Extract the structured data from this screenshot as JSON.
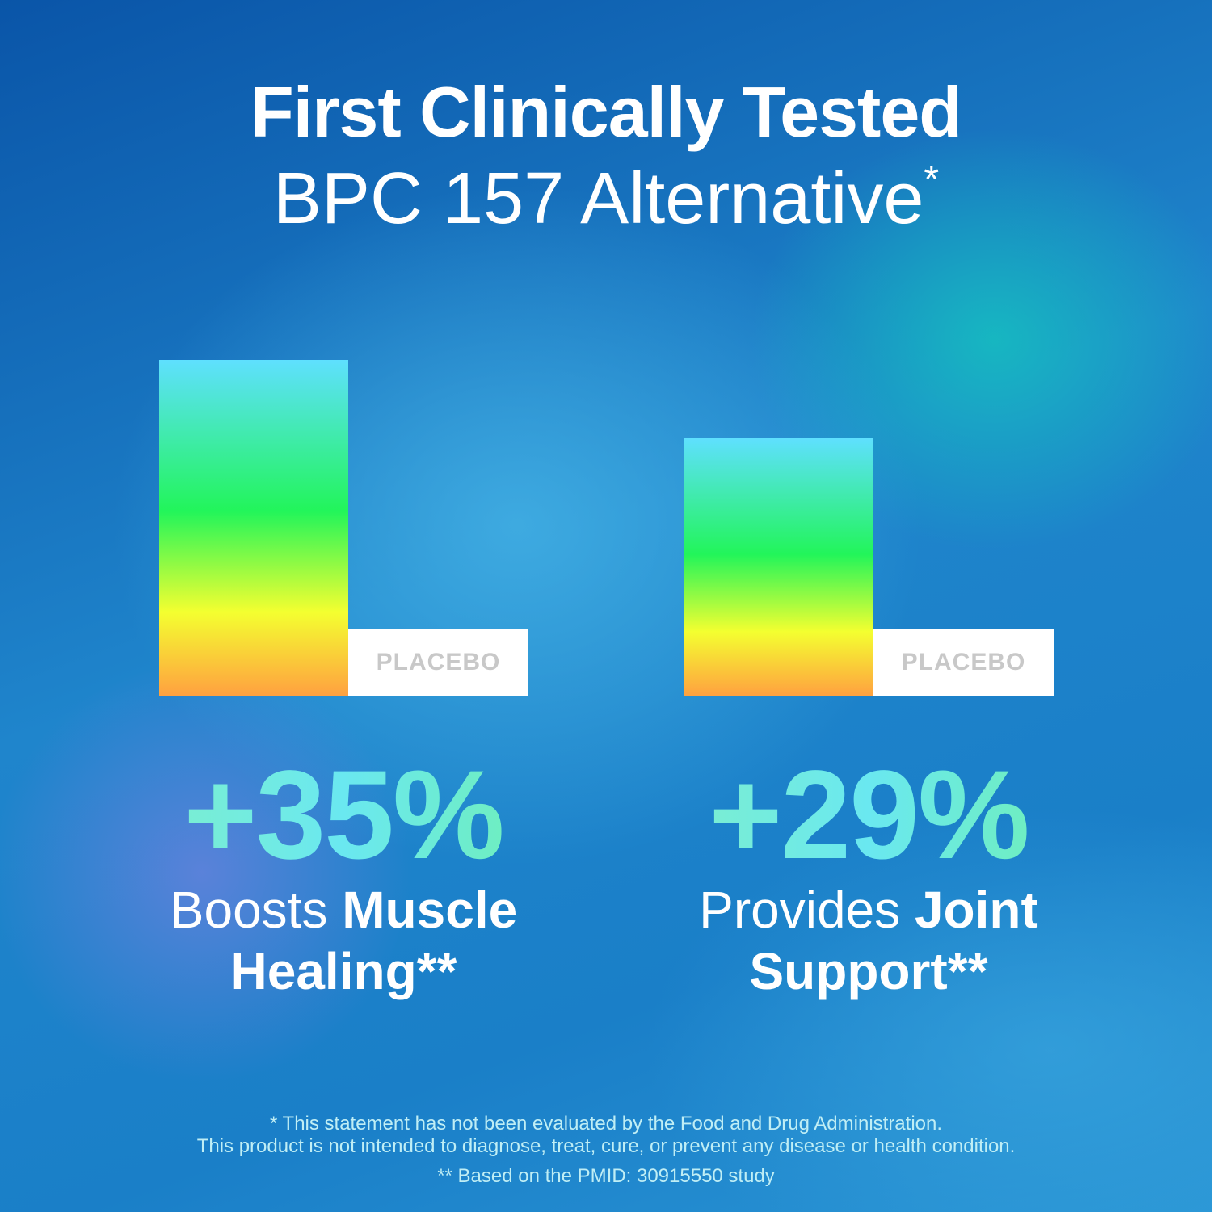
{
  "header": {
    "title": "First Clinically Tested",
    "subtitle": "BPC 157 Alternative",
    "subtitle_mark": "*"
  },
  "panels": [
    {
      "placebo_label": "PLACEBO",
      "stat": "+35%",
      "text_regular": "Boosts",
      "text_bold": "Muscle Healing**"
    },
    {
      "placebo_label": "PLACEBO",
      "stat": "+29%",
      "text_regular": "Provides",
      "text_bold": "Joint Support**"
    }
  ],
  "footer": {
    "lines": [
      "* This statement has not been evaluated by the Food and Drug Administration.",
      "This product is not intended to diagnose, treat, cure, or prevent any disease or health condition.",
      "** Based on the PMID: 30915550 study"
    ]
  }
}
